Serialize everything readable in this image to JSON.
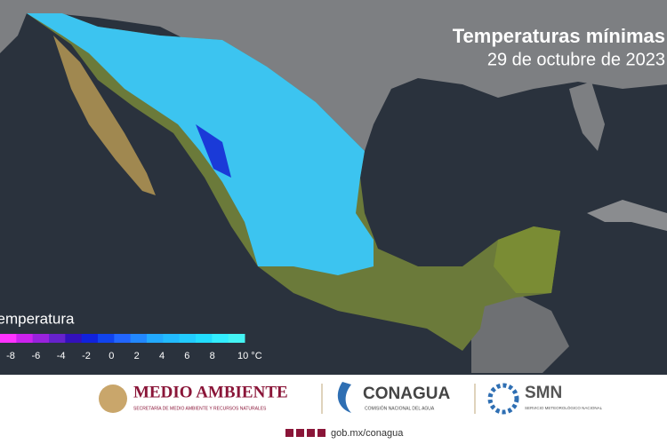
{
  "header": {
    "title": "Temperaturas mínimas",
    "date": "29 de octubre de 2023"
  },
  "legend": {
    "title": "Temperatura",
    "colors": [
      "#ff33ff",
      "#cc22ee",
      "#9922dd",
      "#6622cc",
      "#3311bb",
      "#1122dd",
      "#1144ee",
      "#2266ff",
      "#2288ff",
      "#22aaff",
      "#22bbff",
      "#22ccff",
      "#22ddff",
      "#33eeff",
      "#44f4f4"
    ],
    "ticks": [
      -8,
      -6,
      -4,
      -2,
      0,
      2,
      4,
      6,
      8,
      {
        "value": 10,
        "label": "10 °C"
      }
    ]
  },
  "footer": {
    "semarnat": "MEDIO AMBIENTE",
    "semarnat_sub": "SECRETARÍA DE MEDIO AMBIENTE Y RECURSOS NATURALES",
    "conagua": "CONAGUA",
    "conagua_sub": "COMISIÓN NACIONAL DEL AGUA",
    "smn": "SMN",
    "smn_sub": "SERVICIO METEOROLÓGICO NACIONAL",
    "url": "gob.mx/conagua"
  }
}
